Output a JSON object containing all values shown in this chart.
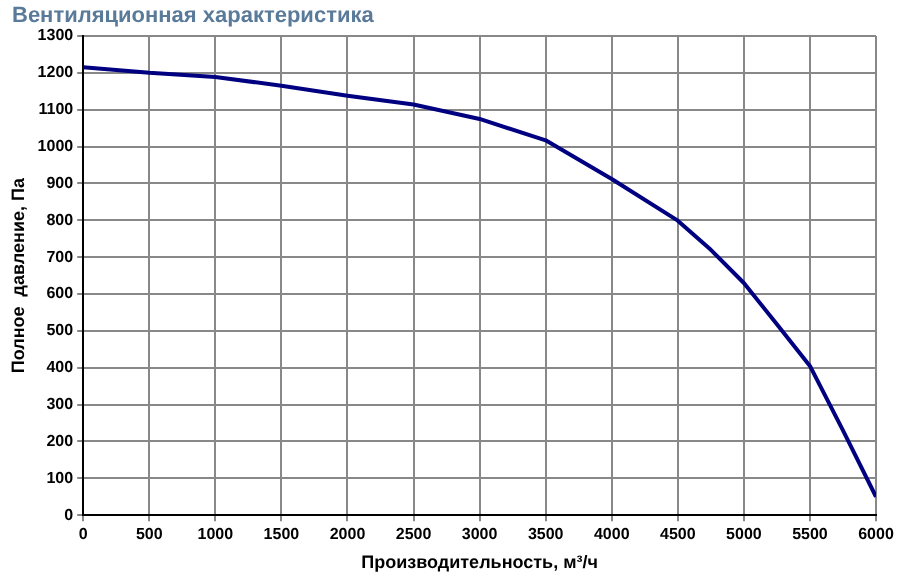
{
  "chart_data": {
    "type": "line",
    "title": "Вентиляционная характеристика",
    "xlabel": "Производительность, м³/ч",
    "ylabel": "Полное  давление, Па",
    "x": [
      0,
      500,
      1000,
      1500,
      2000,
      2500,
      3000,
      3500,
      4000,
      4500,
      4750,
      5000,
      5250,
      5500,
      5750,
      6000
    ],
    "series": [
      {
        "color": "#000080",
        "values": [
          1215,
          1200,
          1189,
          1165,
          1138,
          1114,
          1075,
          1017,
          912,
          799,
          720,
          630,
          518,
          405,
          230,
          50
        ]
      }
    ],
    "xlim": [
      0,
      6000
    ],
    "xticks": [
      0,
      500,
      1000,
      1500,
      2000,
      2500,
      3000,
      3500,
      4000,
      4500,
      5000,
      5500,
      6000
    ],
    "ylim": [
      0,
      1300
    ],
    "yticks": [
      0,
      100,
      200,
      300,
      400,
      500,
      600,
      700,
      800,
      900,
      1000,
      1100,
      1200,
      1300
    ],
    "grid": true,
    "legend": false,
    "marker": "none",
    "line_style": "solid"
  }
}
